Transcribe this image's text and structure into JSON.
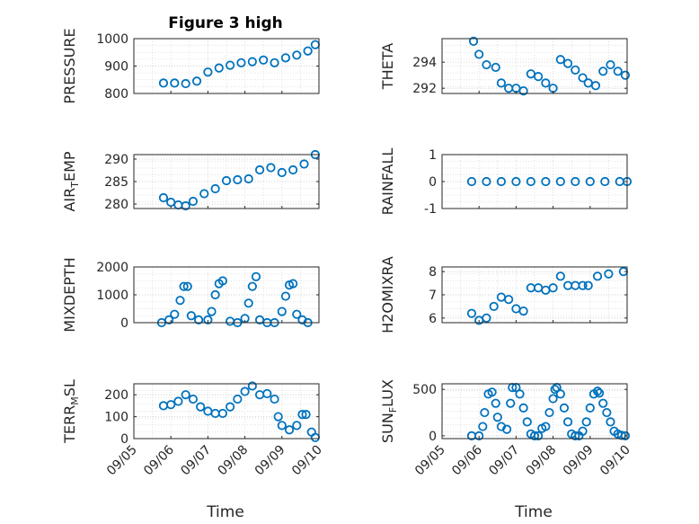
{
  "figure": {
    "title": "Figure 3 high",
    "xlabel": "Time",
    "colors": {
      "marker": "#0072BD",
      "axis": "#262626",
      "grid": "#d9d9d9"
    }
  },
  "chart_data": [
    {
      "type": "scatter",
      "ylabel": "PRESSURE",
      "ylabel_sub": "",
      "ylabel_suffix": "",
      "xlim": [
        0,
        5
      ],
      "ylim": [
        800,
        1000
      ],
      "yticks": [
        "800",
        "900",
        "1000"
      ],
      "ytick_values": [
        800,
        900,
        1000
      ],
      "xticks": [],
      "grid": true,
      "x": [
        0.8,
        1.1,
        1.4,
        1.7,
        2.0,
        2.3,
        2.6,
        2.9,
        3.2,
        3.5,
        3.8,
        4.1,
        4.4,
        4.7,
        4.9
      ],
      "y": [
        838,
        838,
        836,
        845,
        878,
        893,
        903,
        912,
        916,
        922,
        912,
        930,
        940,
        955,
        978
      ]
    },
    {
      "type": "scatter",
      "ylabel": "THETA",
      "ylabel_sub": "",
      "ylabel_suffix": "",
      "xlim": [
        0,
        5
      ],
      "ylim": [
        291.6,
        295.8
      ],
      "yticks": [
        "292",
        "294"
      ],
      "ytick_values": [
        292,
        294
      ],
      "xticks": [],
      "grid": true,
      "x": [
        0.85,
        1.0,
        1.2,
        1.45,
        1.6,
        1.8,
        2.0,
        2.2,
        2.4,
        2.6,
        2.8,
        3.0,
        3.2,
        3.4,
        3.6,
        3.8,
        3.95,
        4.15,
        4.35,
        4.55,
        4.75,
        4.95
      ],
      "y": [
        295.6,
        294.6,
        293.8,
        293.6,
        292.4,
        292.0,
        292.0,
        291.8,
        293.1,
        292.9,
        292.4,
        292.0,
        294.2,
        293.9,
        293.4,
        292.8,
        292.4,
        292.2,
        293.3,
        293.8,
        293.3,
        293.0
      ]
    },
    {
      "type": "scatter",
      "ylabel": "AIR",
      "ylabel_sub": "T",
      "ylabel_suffix": "EMP",
      "xlim": [
        0,
        5
      ],
      "ylim": [
        279,
        291
      ],
      "yticks": [
        "280",
        "285",
        "290"
      ],
      "ytick_values": [
        280,
        285,
        290
      ],
      "xticks": [],
      "grid": true,
      "x": [
        0.8,
        1.0,
        1.2,
        1.4,
        1.6,
        1.9,
        2.2,
        2.5,
        2.8,
        3.1,
        3.4,
        3.7,
        4.0,
        4.3,
        4.6,
        4.9
      ],
      "y": [
        281.4,
        280.4,
        279.8,
        279.6,
        280.6,
        282.3,
        283.4,
        285.2,
        285.4,
        285.6,
        287.6,
        288.1,
        287.0,
        287.6,
        288.9,
        291.0
      ]
    },
    {
      "type": "scatter",
      "ylabel": "RAINFALL",
      "ylabel_sub": "",
      "ylabel_suffix": "",
      "xlim": [
        0,
        5
      ],
      "ylim": [
        -1,
        1
      ],
      "yticks": [
        "-1",
        "0",
        "1"
      ],
      "ytick_values": [
        -1,
        0,
        1
      ],
      "xticks": [],
      "grid": true,
      "x": [
        0.8,
        1.2,
        1.6,
        2.0,
        2.4,
        2.8,
        3.2,
        3.6,
        4.0,
        4.4,
        4.8,
        5.0
      ],
      "y": [
        0,
        0,
        0,
        0,
        0,
        0,
        0,
        0,
        0,
        0,
        0,
        0
      ]
    },
    {
      "type": "scatter",
      "ylabel": "MIXDEPTH",
      "ylabel_sub": "",
      "ylabel_suffix": "",
      "xlim": [
        0,
        5
      ],
      "ylim": [
        0,
        2000
      ],
      "yticks": [
        "0",
        "1000",
        "2000"
      ],
      "ytick_values": [
        0,
        1000,
        2000
      ],
      "xticks": [],
      "grid": true,
      "x": [
        0.75,
        0.95,
        1.1,
        1.25,
        1.35,
        1.45,
        1.55,
        1.75,
        2.0,
        2.1,
        2.2,
        2.3,
        2.4,
        2.6,
        2.8,
        3.0,
        3.1,
        3.2,
        3.3,
        3.4,
        3.6,
        3.8,
        4.0,
        4.1,
        4.2,
        4.3,
        4.4,
        4.55,
        4.7
      ],
      "y": [
        0,
        100,
        300,
        800,
        1300,
        1300,
        250,
        100,
        100,
        400,
        1000,
        1400,
        1500,
        50,
        0,
        150,
        700,
        1300,
        1650,
        100,
        0,
        0,
        400,
        950,
        1350,
        1400,
        300,
        100,
        0
      ]
    },
    {
      "type": "scatter",
      "ylabel": "H2OMIXRA",
      "ylabel_sub": "",
      "ylabel_suffix": "",
      "xlim": [
        0,
        5
      ],
      "ylim": [
        5.8,
        8.2
      ],
      "yticks": [
        "6",
        "7",
        "8"
      ],
      "ytick_values": [
        6,
        7,
        8
      ],
      "xticks": [],
      "grid": true,
      "x": [
        0.8,
        1.0,
        1.2,
        1.4,
        1.6,
        1.8,
        2.0,
        2.2,
        2.4,
        2.6,
        2.8,
        3.0,
        3.2,
        3.4,
        3.6,
        3.8,
        3.95,
        4.2,
        4.5,
        4.9
      ],
      "y": [
        6.2,
        5.9,
        6.0,
        6.5,
        6.9,
        6.8,
        6.4,
        6.3,
        7.3,
        7.3,
        7.2,
        7.3,
        7.8,
        7.4,
        7.4,
        7.4,
        7.4,
        7.8,
        7.9,
        8.0
      ]
    },
    {
      "type": "scatter",
      "ylabel": "TERR",
      "ylabel_sub": "M",
      "ylabel_suffix": "SL",
      "xlim": [
        0,
        5
      ],
      "ylim": [
        0,
        250
      ],
      "yticks": [
        "0",
        "100",
        "200"
      ],
      "ytick_values": [
        0,
        100,
        200
      ],
      "xticks": [
        "09/05",
        "09/06",
        "09/07",
        "09/08",
        "09/09",
        "09/10"
      ],
      "xtick_values": [
        0,
        1,
        2,
        3,
        4,
        5
      ],
      "grid": true,
      "x": [
        0.8,
        1.0,
        1.2,
        1.4,
        1.6,
        1.8,
        2.0,
        2.2,
        2.4,
        2.6,
        2.8,
        3.0,
        3.2,
        3.4,
        3.6,
        3.8,
        3.9,
        4.0,
        4.2,
        4.4,
        4.55,
        4.65,
        4.8,
        4.9
      ],
      "y": [
        150,
        155,
        170,
        200,
        180,
        145,
        125,
        115,
        115,
        145,
        180,
        215,
        240,
        200,
        205,
        180,
        100,
        60,
        40,
        60,
        110,
        110,
        30,
        5
      ]
    },
    {
      "type": "scatter",
      "ylabel": "SUN",
      "ylabel_sub": "F",
      "ylabel_suffix": "LUX",
      "xlim": [
        0,
        5
      ],
      "ylim": [
        -30,
        560
      ],
      "yticks": [
        "0",
        "500"
      ],
      "ytick_values": [
        0,
        500
      ],
      "xticks": [
        "09/05",
        "09/06",
        "09/07",
        "09/08",
        "09/09",
        "09/10"
      ],
      "xtick_values": [
        0,
        1,
        2,
        3,
        4,
        5
      ],
      "grid": true,
      "x": [
        0.8,
        1.0,
        1.1,
        1.15,
        1.25,
        1.35,
        1.45,
        1.5,
        1.6,
        1.75,
        1.85,
        1.9,
        2.0,
        2.1,
        2.2,
        2.3,
        2.4,
        2.5,
        2.6,
        2.7,
        2.8,
        2.9,
        3.0,
        3.05,
        3.1,
        3.2,
        3.3,
        3.4,
        3.5,
        3.6,
        3.7,
        3.8,
        3.9,
        4.0,
        4.1,
        4.2,
        4.25,
        4.35,
        4.45,
        4.55,
        4.65,
        4.75,
        4.85,
        4.95
      ],
      "y": [
        0,
        0,
        100,
        250,
        450,
        470,
        350,
        200,
        100,
        70,
        350,
        520,
        520,
        450,
        300,
        150,
        20,
        0,
        0,
        80,
        100,
        250,
        400,
        500,
        520,
        450,
        300,
        150,
        20,
        0,
        0,
        50,
        150,
        300,
        450,
        480,
        460,
        350,
        250,
        150,
        50,
        20,
        5,
        0
      ]
    }
  ]
}
